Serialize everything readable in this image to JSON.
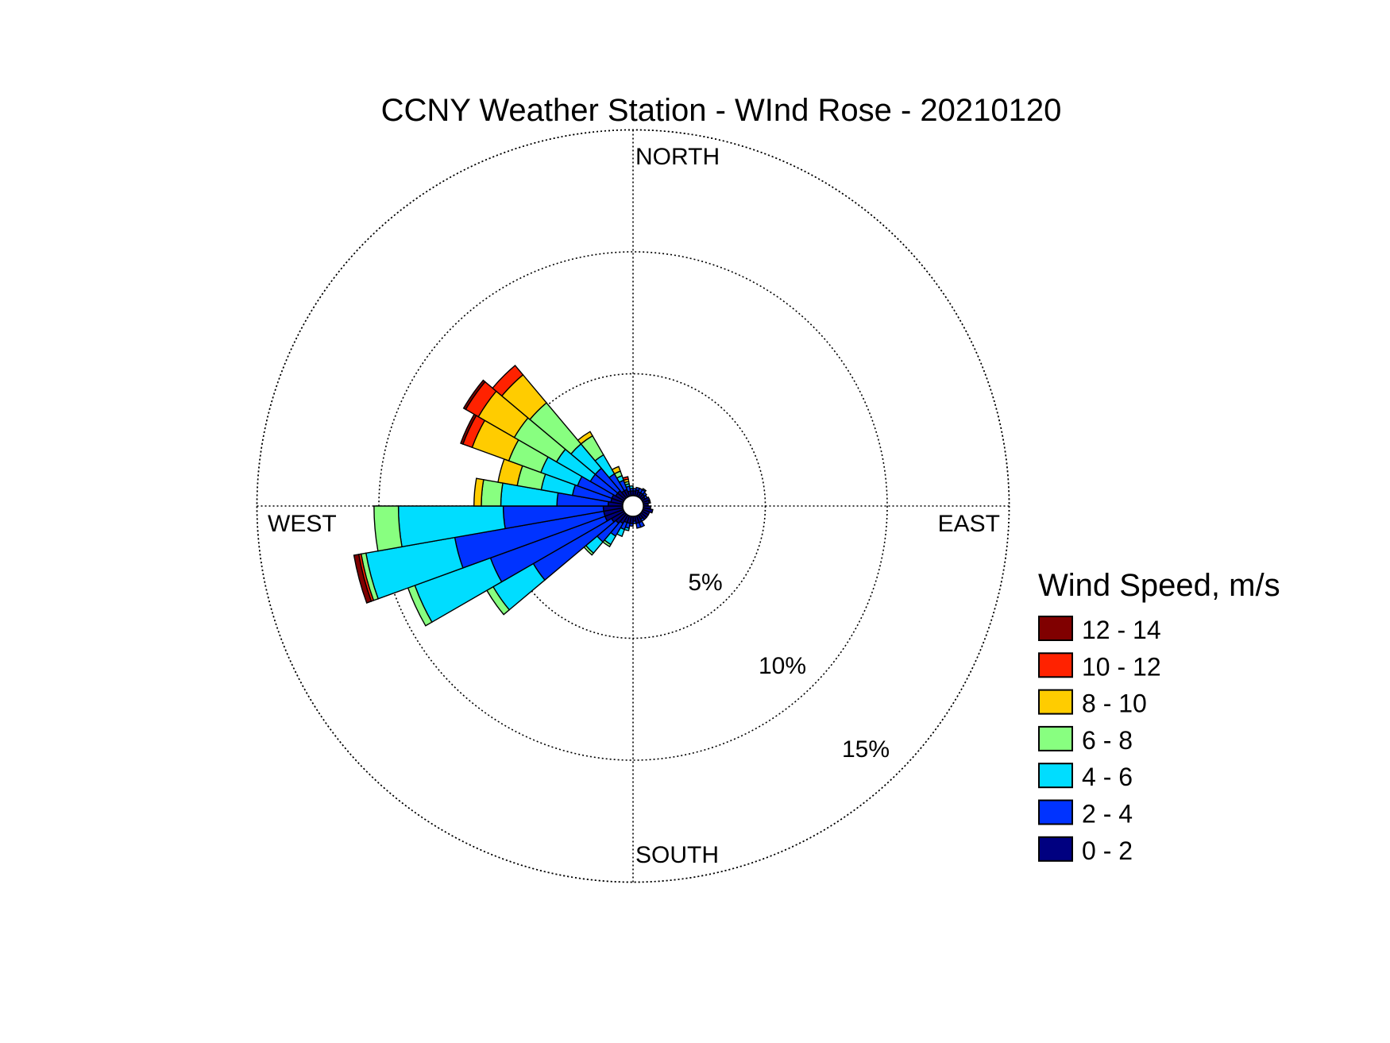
{
  "chart_data": {
    "type": "wind-rose",
    "title": "CCNY Weather Station - WInd Rose - 20210120",
    "direction_labels": {
      "north": "NORTH",
      "east": "EAST",
      "south": "SOUTH",
      "west": "WEST"
    },
    "ring_values": [
      5,
      10,
      15
    ],
    "ring_labels": [
      "5%",
      "10%",
      "15%"
    ],
    "legend_title": "Wind Speed, m/s",
    "bins": [
      {
        "label": "0 - 2",
        "color": "#000080"
      },
      {
        "label": "2 - 4",
        "color": "#0033FF"
      },
      {
        "label": "4 - 6",
        "color": "#00DDFF"
      },
      {
        "label": "6 - 8",
        "color": "#88FF80"
      },
      {
        "label": "8 - 10",
        "color": "#FFCC00"
      },
      {
        "label": "10 - 12",
        "color": "#FF2200"
      },
      {
        "label": "12 - 14",
        "color": "#800000"
      }
    ],
    "sector_width_deg": 10,
    "sectors": [
      {
        "direction": 5,
        "values": [
          0.2,
          0.1
        ]
      },
      {
        "direction": 15,
        "values": [
          0.25,
          0.1
        ]
      },
      {
        "direction": 25,
        "values": [
          0.2,
          0.15
        ]
      },
      {
        "direction": 35,
        "values": [
          0.2,
          0.15,
          0.05
        ]
      },
      {
        "direction": 45,
        "values": [
          0.2,
          0.1
        ]
      },
      {
        "direction": 55,
        "values": [
          0.15,
          0.1
        ]
      },
      {
        "direction": 65,
        "values": [
          0.3
        ]
      },
      {
        "direction": 75,
        "values": [
          0.25,
          0.05
        ]
      },
      {
        "direction": 85,
        "values": [
          0.2
        ]
      },
      {
        "direction": 95,
        "values": [
          0.3
        ]
      },
      {
        "direction": 105,
        "values": [
          0.4
        ]
      },
      {
        "direction": 115,
        "values": [
          0.3
        ]
      },
      {
        "direction": 125,
        "values": [
          0.3
        ]
      },
      {
        "direction": 135,
        "values": [
          0.3
        ]
      },
      {
        "direction": 145,
        "values": [
          0.2,
          0.1
        ]
      },
      {
        "direction": 155,
        "values": [
          0.3,
          0.2
        ]
      },
      {
        "direction": 165,
        "values": [
          0.3,
          0.2
        ]
      },
      {
        "direction": 175,
        "values": [
          0.2,
          0.1
        ]
      },
      {
        "direction": 185,
        "values": [
          0.3,
          0.1
        ]
      },
      {
        "direction": 195,
        "values": [
          0.3,
          0.2,
          0.1
        ]
      },
      {
        "direction": 205,
        "values": [
          0.3,
          0.3,
          0.3
        ]
      },
      {
        "direction": 215,
        "values": [
          0.4,
          0.6,
          0.4,
          0.1
        ]
      },
      {
        "direction": 225,
        "values": [
          0.5,
          1.0,
          0.6,
          0.1
        ]
      },
      {
        "direction": 235,
        "values": [
          0.6,
          3.7,
          1.9,
          0.3
        ]
      },
      {
        "direction": 245,
        "values": [
          0.8,
          5.0,
          3.3,
          0.3
        ]
      },
      {
        "direction": 255,
        "values": [
          0.8,
          6.2,
          3.7,
          0.2,
          0,
          0.1,
          0.2
        ]
      },
      {
        "direction": 265,
        "values": [
          0.8,
          4.1,
          4.3,
          1.0
        ]
      },
      {
        "direction": 275,
        "values": [
          0.6,
          2.1,
          2.3,
          0.8,
          0.3
        ]
      },
      {
        "direction": 285,
        "values": [
          0.5,
          1.6,
          1.3,
          1.0,
          0.8
        ]
      },
      {
        "direction": 295,
        "values": [
          0.5,
          1.5,
          1.6,
          1.4,
          1.6,
          0.4,
          0.1
        ]
      },
      {
        "direction": 305,
        "values": [
          0.4,
          1.2,
          1.6,
          2.0,
          1.7,
          0.6,
          0.1
        ]
      },
      {
        "direction": 315,
        "values": [
          0.4,
          1.2,
          1.3,
          2.2,
          1.5,
          0.5
        ]
      },
      {
        "direction": 325,
        "values": [
          0.3,
          0.8,
          0.9,
          0.9,
          0.2
        ]
      },
      {
        "direction": 335,
        "values": [
          0.3,
          0.4,
          0.2,
          0.2,
          0.2
        ]
      },
      {
        "direction": 345,
        "values": [
          0.2,
          0.2,
          0.1,
          0.1,
          0.1,
          0.1
        ]
      },
      {
        "direction": 355,
        "values": [
          0.2,
          0.1,
          0.1
        ]
      }
    ]
  }
}
